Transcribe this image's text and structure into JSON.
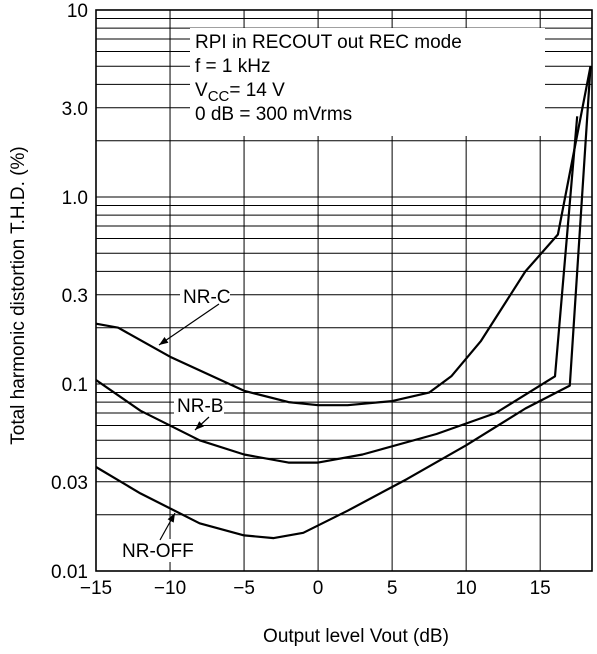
{
  "chart_data": {
    "type": "line",
    "xlabel": "Output level Vout (dB)",
    "ylabel": "Total harmonic distortion T.H.D. (%)",
    "xlim": [
      -15,
      18.5
    ],
    "ylim": [
      0.01,
      10
    ],
    "y_scale": "log",
    "grid": true,
    "x_ticks": [
      -15,
      -10,
      -5,
      0,
      5,
      10,
      15
    ],
    "x_tick_labels": [
      "−15",
      "−10",
      "−5",
      "0",
      "5",
      "10",
      "15"
    ],
    "y_ticks": [
      0.01,
      0.03,
      0.1,
      0.3,
      1.0,
      3.0,
      10
    ],
    "y_tick_labels": [
      "0.01",
      "0.03",
      "0.1",
      "0.3",
      "1.0",
      "3.0",
      "10"
    ],
    "legend_box": {
      "lines": [
        "RPI in RECOUT out REC mode",
        "f = 1 kHz",
        "V",
        "CC",
        "= 14 V",
        "0 dB = 300 mVrms"
      ]
    },
    "series": [
      {
        "name": "NR-C",
        "points": [
          [
            -15,
            0.21
          ],
          [
            -13.5,
            0.2
          ],
          [
            -10,
            0.14
          ],
          [
            -5,
            0.092
          ],
          [
            -2,
            0.08
          ],
          [
            0,
            0.077
          ],
          [
            2,
            0.077
          ],
          [
            5,
            0.081
          ],
          [
            7.5,
            0.09
          ],
          [
            9,
            0.11
          ],
          [
            11,
            0.17
          ],
          [
            14,
            0.4
          ],
          [
            16.2,
            0.63
          ],
          [
            18.4,
            5.0
          ]
        ]
      },
      {
        "name": "NR-B",
        "points": [
          [
            -15,
            0.105
          ],
          [
            -12,
            0.072
          ],
          [
            -8,
            0.05
          ],
          [
            -5,
            0.042
          ],
          [
            -2,
            0.038
          ],
          [
            0,
            0.038
          ],
          [
            3,
            0.042
          ],
          [
            8,
            0.054
          ],
          [
            12,
            0.07
          ],
          [
            16,
            0.11
          ],
          [
            17.5,
            2.7
          ]
        ]
      },
      {
        "name": "NR-OFF",
        "points": [
          [
            -15,
            0.036
          ],
          [
            -12,
            0.026
          ],
          [
            -8,
            0.018
          ],
          [
            -5,
            0.0155
          ],
          [
            -3,
            0.015
          ],
          [
            -1,
            0.016
          ],
          [
            2,
            0.021
          ],
          [
            6,
            0.031
          ],
          [
            10,
            0.047
          ],
          [
            14,
            0.074
          ],
          [
            17,
            0.098
          ],
          [
            18.4,
            5.0
          ]
        ]
      }
    ],
    "labels": [
      {
        "text": "NR-C",
        "series": "NR-C"
      },
      {
        "text": "NR-B",
        "series": "NR-B"
      },
      {
        "text": "NR-OFF",
        "series": "NR-OFF"
      }
    ]
  }
}
